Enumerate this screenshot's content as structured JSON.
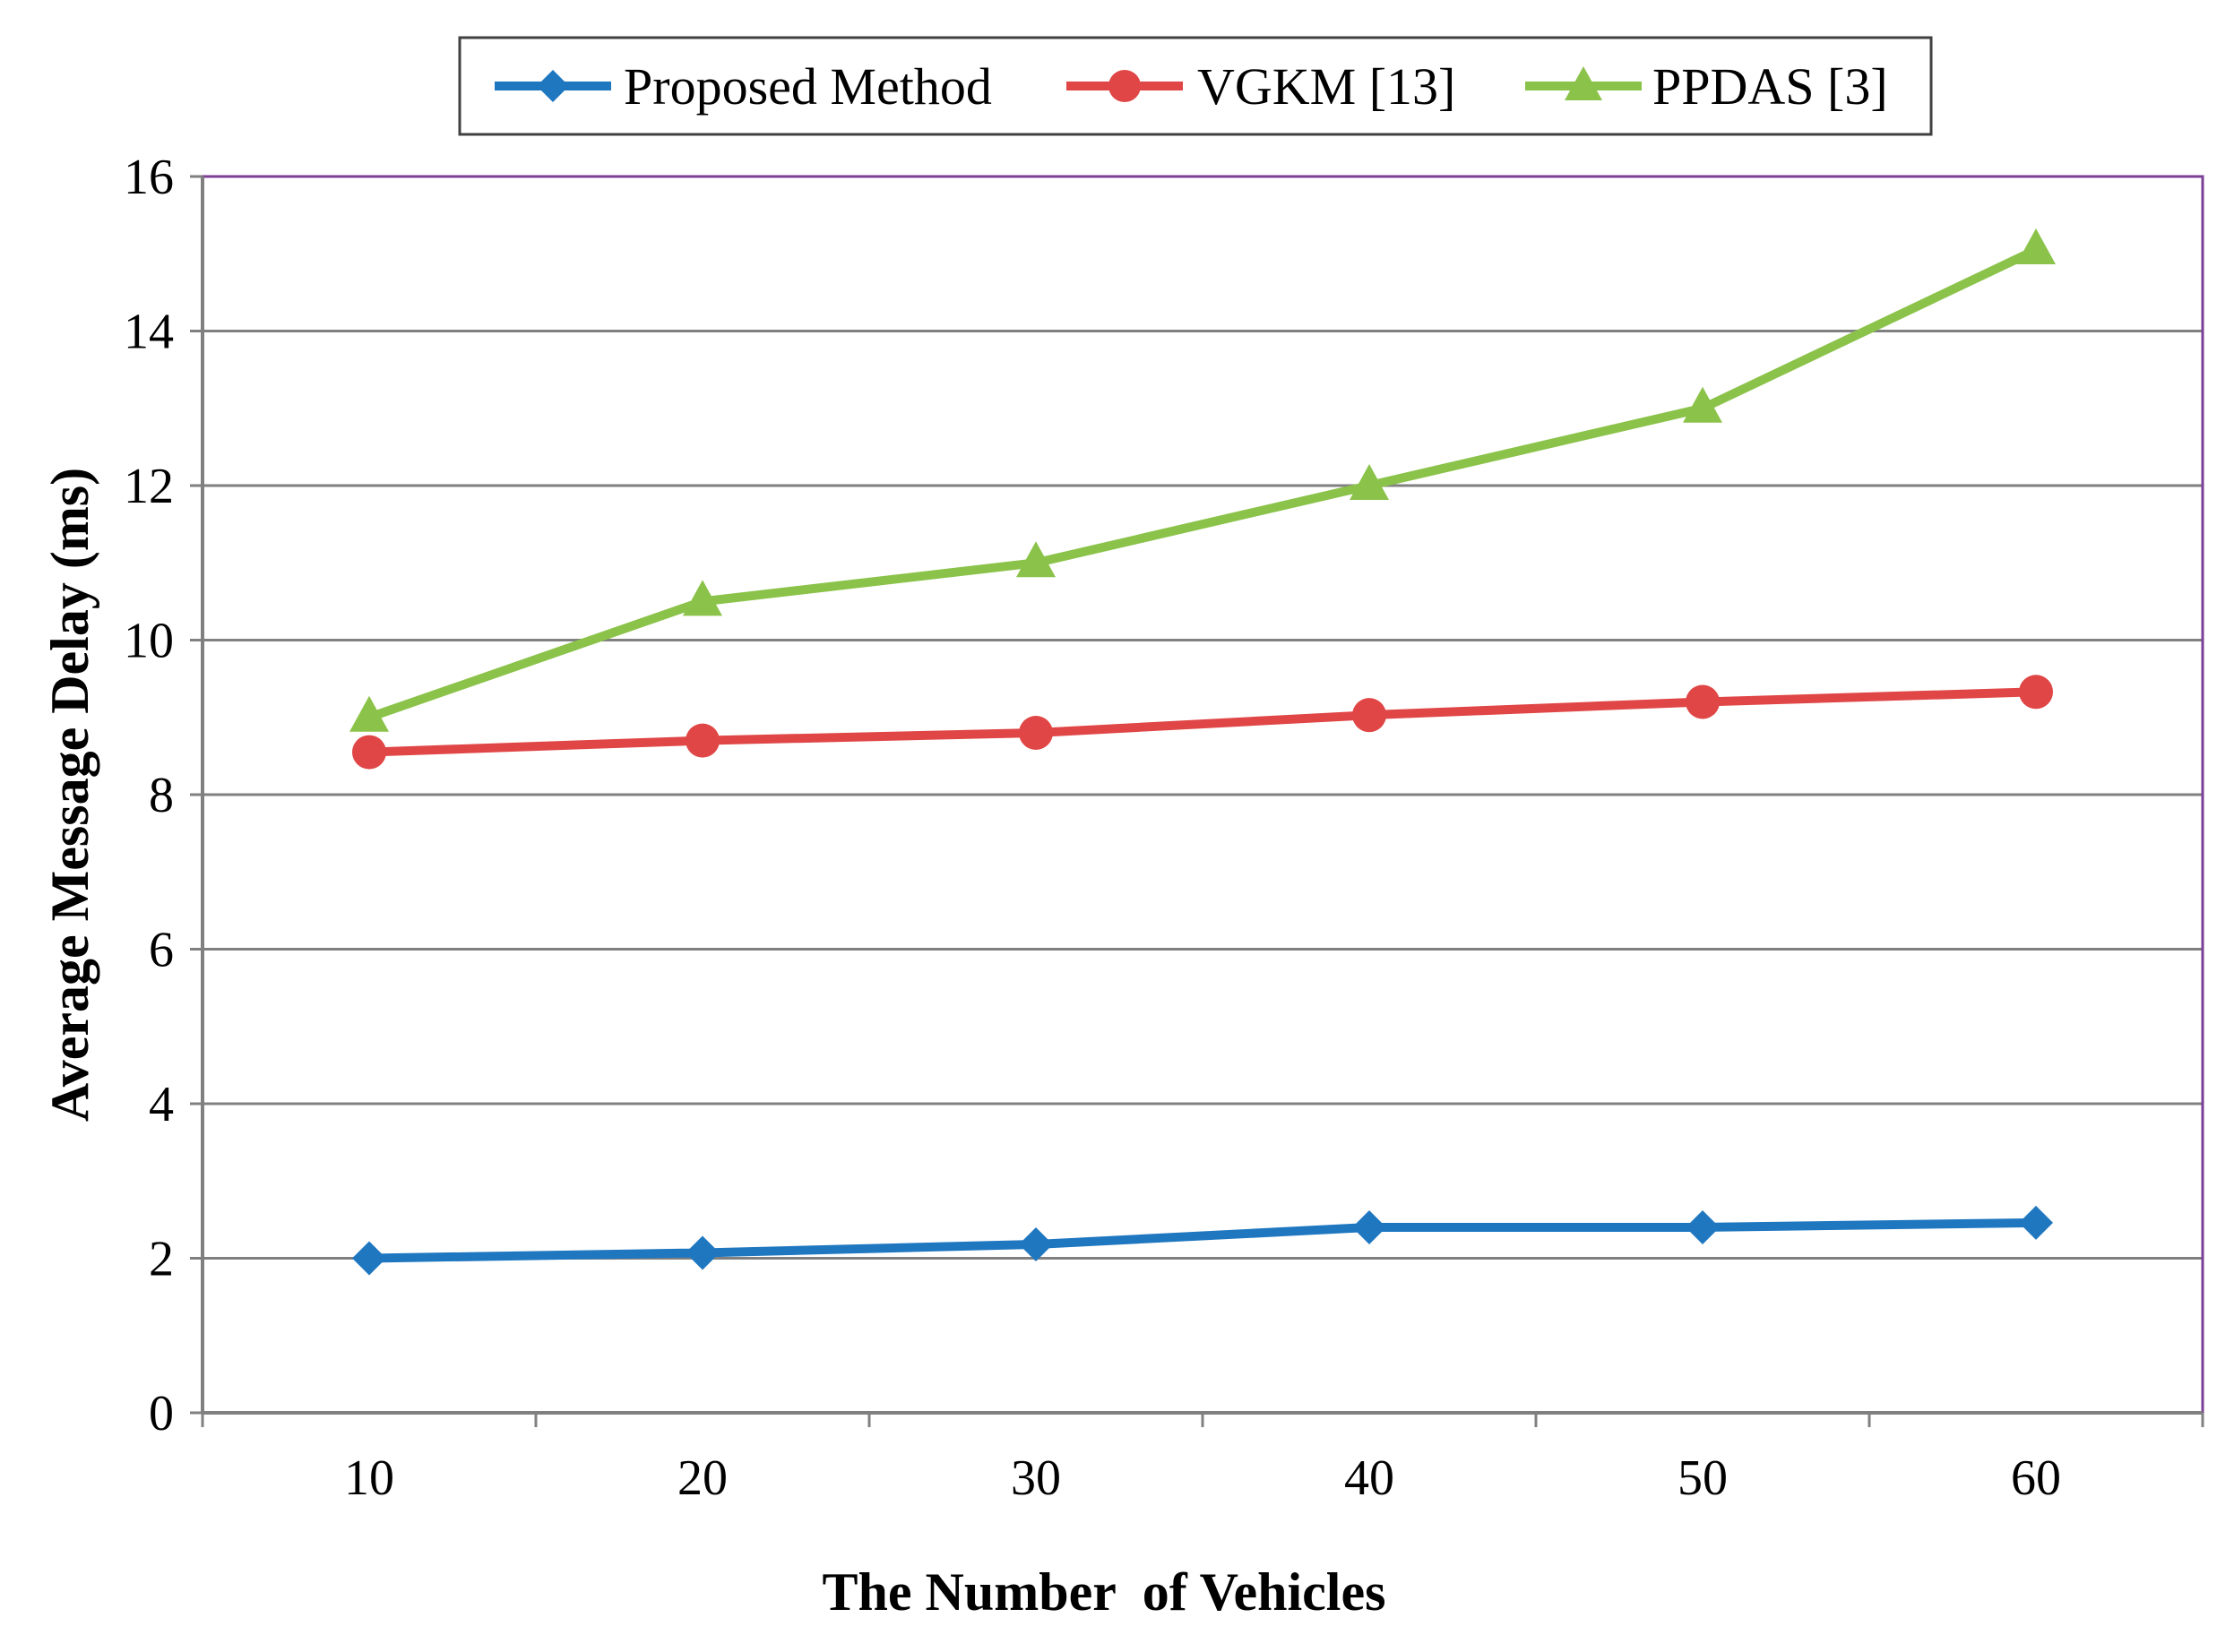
{
  "chart_data": {
    "type": "line",
    "title": "",
    "xlabel": "The Number  of Vehicles",
    "ylabel": "Average Message Delay (ms)",
    "categories": [
      "10",
      "20",
      "30",
      "40",
      "50",
      "60"
    ],
    "ylim": [
      0,
      16
    ],
    "yticks": [
      "0",
      "2",
      "4",
      "6",
      "8",
      "10",
      "12",
      "14",
      "16"
    ],
    "grid": true,
    "legend_position": "top",
    "series": [
      {
        "name": "Proposed Method",
        "marker": "diamond",
        "color": "#1F77C0",
        "values": [
          2.0,
          2.07,
          2.18,
          2.4,
          2.4,
          2.46
        ]
      },
      {
        "name": "VGKM [13]",
        "marker": "circle",
        "color": "#E04646",
        "values": [
          8.55,
          8.7,
          8.8,
          9.03,
          9.2,
          9.33
        ]
      },
      {
        "name": "PPDAS [3]",
        "marker": "triangle",
        "color": "#8BC34A",
        "values": [
          9.0,
          10.5,
          11.0,
          12.0,
          13.0,
          15.05
        ]
      }
    ]
  }
}
